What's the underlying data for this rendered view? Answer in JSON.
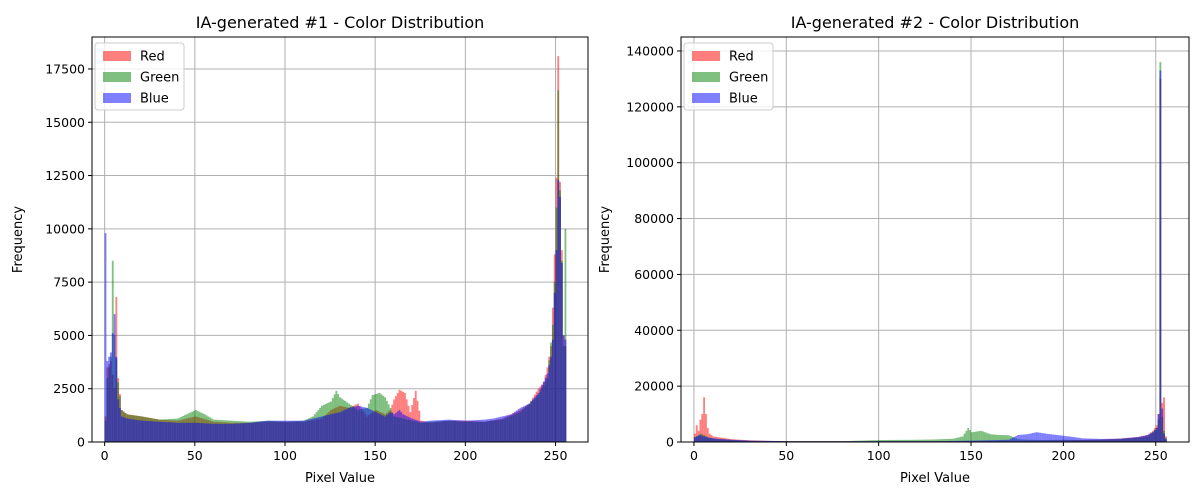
{
  "chart_data": [
    {
      "type": "bar",
      "subtype": "histogram",
      "title": "IA-generated #1 - Color Distribution",
      "xlabel": "Pixel Value",
      "ylabel": "Frequency",
      "xlim": [
        -7,
        268
      ],
      "ylim": [
        0,
        19000
      ],
      "xticks": [
        "0",
        "50",
        "100",
        "150",
        "200",
        "250"
      ],
      "yticks": [
        "0",
        "2500",
        "5000",
        "7500",
        "10000",
        "12500",
        "15000",
        "17500"
      ],
      "grid": true,
      "legend_position": "top-left",
      "bin_width": 1,
      "alpha": 0.5,
      "series": [
        {
          "name": "Red",
          "color": "#ff0000",
          "points": [
            [
              0,
              1200
            ],
            [
              1,
              3500
            ],
            [
              3,
              3800
            ],
            [
              5,
              2500
            ],
            [
              6,
              6800
            ],
            [
              7,
              3000
            ],
            [
              9,
              1500
            ],
            [
              12,
              1300
            ],
            [
              20,
              1200
            ],
            [
              30,
              1050
            ],
            [
              40,
              1000
            ],
            [
              50,
              1200
            ],
            [
              60,
              950
            ],
            [
              70,
              900
            ],
            [
              80,
              900
            ],
            [
              90,
              950
            ],
            [
              100,
              950
            ],
            [
              110,
              950
            ],
            [
              120,
              1100
            ],
            [
              125,
              1500
            ],
            [
              130,
              1700
            ],
            [
              135,
              1600
            ],
            [
              140,
              1800
            ],
            [
              145,
              1200
            ],
            [
              150,
              1500
            ],
            [
              155,
              1300
            ],
            [
              158,
              1500
            ],
            [
              160,
              2000
            ],
            [
              163,
              2450
            ],
            [
              166,
              2300
            ],
            [
              169,
              1400
            ],
            [
              172,
              2400
            ],
            [
              175,
              1000
            ],
            [
              180,
              900
            ],
            [
              190,
              1000
            ],
            [
              200,
              1000
            ],
            [
              210,
              950
            ],
            [
              220,
              1100
            ],
            [
              230,
              1500
            ],
            [
              235,
              1800
            ],
            [
              240,
              2500
            ],
            [
              243,
              2800
            ],
            [
              245,
              3500
            ],
            [
              247,
              4500
            ],
            [
              248,
              6300
            ],
            [
              249,
              8800
            ],
            [
              250,
              12400
            ],
            [
              251,
              18100
            ],
            [
              252,
              12200
            ],
            [
              253,
              9000
            ],
            [
              254,
              5000
            ],
            [
              255,
              4500
            ]
          ]
        },
        {
          "name": "Green",
          "color": "#008000",
          "points": [
            [
              0,
              1000
            ],
            [
              1,
              3000
            ],
            [
              3,
              4000
            ],
            [
              4,
              8500
            ],
            [
              5,
              5000
            ],
            [
              7,
              2800
            ],
            [
              9,
              1500
            ],
            [
              12,
              1300
            ],
            [
              20,
              1200
            ],
            [
              30,
              1050
            ],
            [
              40,
              1100
            ],
            [
              50,
              1500
            ],
            [
              55,
              1300
            ],
            [
              60,
              1050
            ],
            [
              70,
              1000
            ],
            [
              80,
              950
            ],
            [
              90,
              1000
            ],
            [
              100,
              950
            ],
            [
              110,
              1000
            ],
            [
              115,
              1200
            ],
            [
              120,
              1700
            ],
            [
              125,
              1900
            ],
            [
              128,
              2400
            ],
            [
              130,
              2100
            ],
            [
              135,
              1800
            ],
            [
              140,
              1500
            ],
            [
              145,
              1600
            ],
            [
              148,
              2200
            ],
            [
              152,
              2300
            ],
            [
              155,
              2100
            ],
            [
              158,
              1600
            ],
            [
              160,
              1200
            ],
            [
              165,
              1100
            ],
            [
              170,
              1000
            ],
            [
              175,
              900
            ],
            [
              180,
              950
            ],
            [
              190,
              1000
            ],
            [
              200,
              950
            ],
            [
              210,
              950
            ],
            [
              220,
              1050
            ],
            [
              230,
              1400
            ],
            [
              240,
              2200
            ],
            [
              245,
              3000
            ],
            [
              248,
              5500
            ],
            [
              249,
              7500
            ],
            [
              250,
              11000
            ],
            [
              251,
              16500
            ],
            [
              252,
              11800
            ],
            [
              253,
              8500
            ],
            [
              254,
              4500
            ],
            [
              255,
              10000
            ]
          ]
        },
        {
          "name": "Blue",
          "color": "#0000ff",
          "points": [
            [
              0,
              9800
            ],
            [
              1,
              3800
            ],
            [
              2,
              4000
            ],
            [
              3,
              4200
            ],
            [
              5,
              6000
            ],
            [
              7,
              2000
            ],
            [
              9,
              1200
            ],
            [
              12,
              1100
            ],
            [
              20,
              1000
            ],
            [
              30,
              950
            ],
            [
              40,
              900
            ],
            [
              50,
              900
            ],
            [
              60,
              850
            ],
            [
              70,
              850
            ],
            [
              80,
              900
            ],
            [
              90,
              1000
            ],
            [
              100,
              1000
            ],
            [
              110,
              1000
            ],
            [
              120,
              1200
            ],
            [
              125,
              1300
            ],
            [
              130,
              1400
            ],
            [
              135,
              1600
            ],
            [
              140,
              1700
            ],
            [
              145,
              1600
            ],
            [
              150,
              1400
            ],
            [
              155,
              1200
            ],
            [
              158,
              1400
            ],
            [
              160,
              1300
            ],
            [
              163,
              1500
            ],
            [
              165,
              1300
            ],
            [
              170,
              1100
            ],
            [
              175,
              950
            ],
            [
              180,
              1000
            ],
            [
              190,
              1050
            ],
            [
              200,
              1000
            ],
            [
              210,
              1050
            ],
            [
              215,
              1100
            ],
            [
              220,
              1200
            ],
            [
              225,
              1300
            ],
            [
              230,
              1600
            ],
            [
              235,
              1800
            ],
            [
              240,
              2300
            ],
            [
              245,
              3200
            ],
            [
              247,
              4000
            ],
            [
              248,
              4800
            ],
            [
              249,
              7000
            ],
            [
              250,
              9000
            ],
            [
              251,
              12300
            ],
            [
              252,
              11500
            ],
            [
              253,
              8400
            ],
            [
              254,
              5000
            ],
            [
              255,
              4800
            ]
          ]
        }
      ]
    },
    {
      "type": "bar",
      "subtype": "histogram",
      "title": "IA-generated #2 - Color Distribution",
      "xlabel": "Pixel Value",
      "ylabel": "Frequency",
      "xlim": [
        -7,
        268
      ],
      "ylim": [
        0,
        145000
      ],
      "xticks": [
        "0",
        "50",
        "100",
        "150",
        "200",
        "250"
      ],
      "yticks": [
        "0",
        "20000",
        "40000",
        "60000",
        "80000",
        "100000",
        "120000",
        "140000"
      ],
      "grid": true,
      "legend_position": "top-left",
      "bin_width": 1,
      "alpha": 0.5,
      "series": [
        {
          "name": "Red",
          "color": "#ff0000",
          "points": [
            [
              0,
              3000
            ],
            [
              1,
              6000
            ],
            [
              2,
              4000
            ],
            [
              3,
              8000
            ],
            [
              4,
              10000
            ],
            [
              5,
              16000
            ],
            [
              6,
              10000
            ],
            [
              7,
              5000
            ],
            [
              8,
              3000
            ],
            [
              10,
              2000
            ],
            [
              15,
              1500
            ],
            [
              20,
              1000
            ],
            [
              30,
              600
            ],
            [
              40,
              400
            ],
            [
              60,
              300
            ],
            [
              100,
              300
            ],
            [
              140,
              300
            ],
            [
              160,
              400
            ],
            [
              180,
              500
            ],
            [
              200,
              600
            ],
            [
              220,
              900
            ],
            [
              230,
              1200
            ],
            [
              240,
              1800
            ],
            [
              245,
              2500
            ],
            [
              248,
              4000
            ],
            [
              250,
              6000
            ],
            [
              251,
              10000
            ],
            [
              252,
              130000
            ],
            [
              253,
              14000
            ],
            [
              254,
              16000
            ],
            [
              255,
              2000
            ]
          ]
        },
        {
          "name": "Green",
          "color": "#008000",
          "points": [
            [
              0,
              1500
            ],
            [
              3,
              3000
            ],
            [
              5,
              2500
            ],
            [
              8,
              1500
            ],
            [
              12,
              1000
            ],
            [
              20,
              700
            ],
            [
              30,
              400
            ],
            [
              50,
              300
            ],
            [
              80,
              300
            ],
            [
              90,
              500
            ],
            [
              100,
              700
            ],
            [
              120,
              800
            ],
            [
              130,
              900
            ],
            [
              140,
              1200
            ],
            [
              145,
              2000
            ],
            [
              148,
              5000
            ],
            [
              150,
              3500
            ],
            [
              155,
              4000
            ],
            [
              160,
              2800
            ],
            [
              165,
              2500
            ],
            [
              170,
              2400
            ],
            [
              175,
              1000
            ],
            [
              180,
              800
            ],
            [
              190,
              700
            ],
            [
              200,
              800
            ],
            [
              210,
              700
            ],
            [
              220,
              800
            ],
            [
              230,
              1000
            ],
            [
              240,
              1500
            ],
            [
              245,
              2000
            ],
            [
              248,
              3500
            ],
            [
              250,
              5000
            ],
            [
              251,
              8000
            ],
            [
              252,
              136000
            ],
            [
              253,
              9000
            ],
            [
              254,
              4000
            ],
            [
              255,
              1500
            ]
          ]
        },
        {
          "name": "Blue",
          "color": "#0000ff",
          "points": [
            [
              0,
              1800
            ],
            [
              3,
              2500
            ],
            [
              5,
              2000
            ],
            [
              8,
              1500
            ],
            [
              12,
              1200
            ],
            [
              20,
              800
            ],
            [
              30,
              500
            ],
            [
              50,
              300
            ],
            [
              80,
              300
            ],
            [
              100,
              300
            ],
            [
              130,
              300
            ],
            [
              150,
              500
            ],
            [
              170,
              800
            ],
            [
              175,
              2500
            ],
            [
              180,
              2800
            ],
            [
              185,
              3500
            ],
            [
              190,
              3000
            ],
            [
              195,
              2600
            ],
            [
              200,
              2200
            ],
            [
              205,
              1800
            ],
            [
              210,
              1300
            ],
            [
              220,
              1100
            ],
            [
              230,
              1200
            ],
            [
              240,
              1800
            ],
            [
              245,
              2500
            ],
            [
              248,
              3500
            ],
            [
              250,
              5000
            ],
            [
              251,
              10000
            ],
            [
              252,
              133000
            ],
            [
              253,
              12000
            ],
            [
              254,
              3000
            ],
            [
              255,
              1000
            ]
          ]
        }
      ]
    }
  ]
}
